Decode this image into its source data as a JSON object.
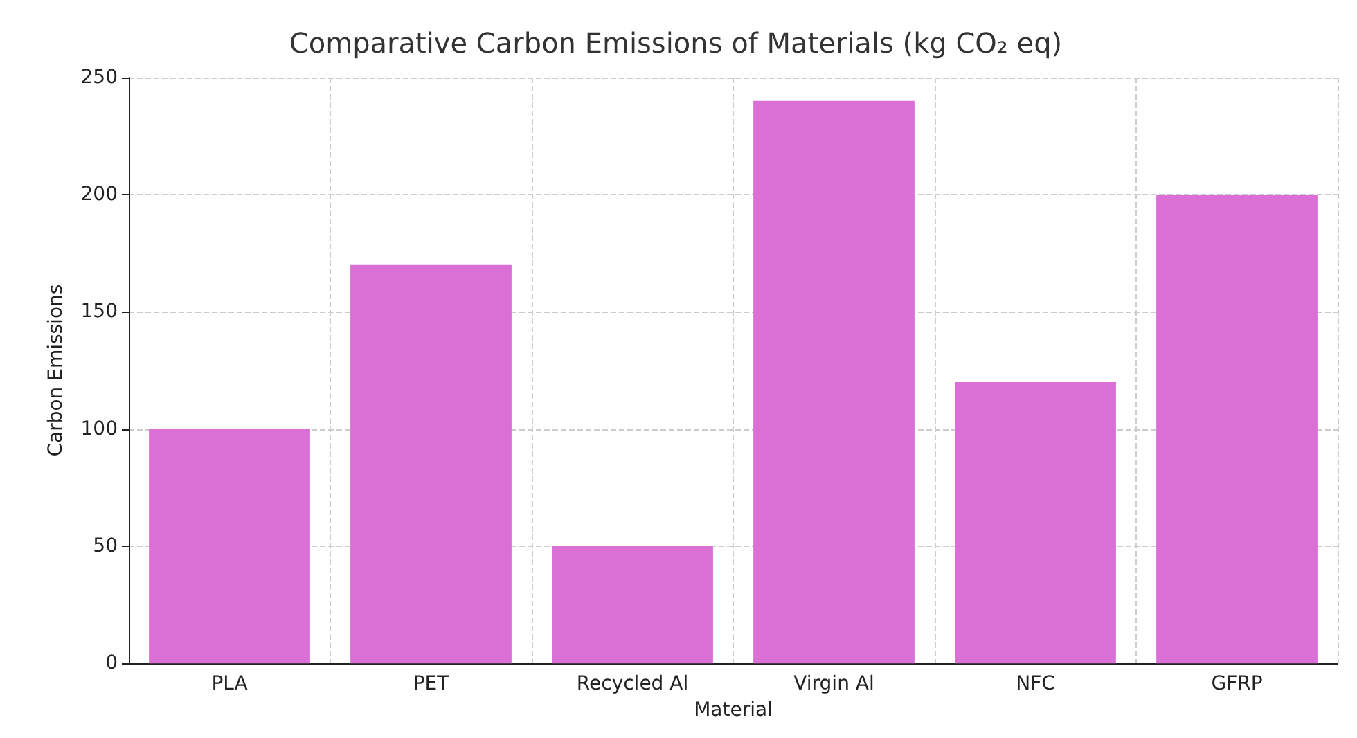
{
  "chart_data": {
    "type": "bar",
    "title": "Comparative Carbon Emissions of Materials (kg CO₂ eq)",
    "xlabel": "Material",
    "ylabel": "Carbon Emissions",
    "categories": [
      "PLA",
      "PET",
      "Recycled Al",
      "Virgin Al",
      "NFC",
      "GFRP"
    ],
    "values": [
      100,
      170,
      50,
      240,
      120,
      200
    ],
    "color": "#da70d6",
    "ylim": [
      0,
      250
    ],
    "yticks": [
      0,
      50,
      100,
      150,
      200,
      250
    ],
    "grid": true
  }
}
